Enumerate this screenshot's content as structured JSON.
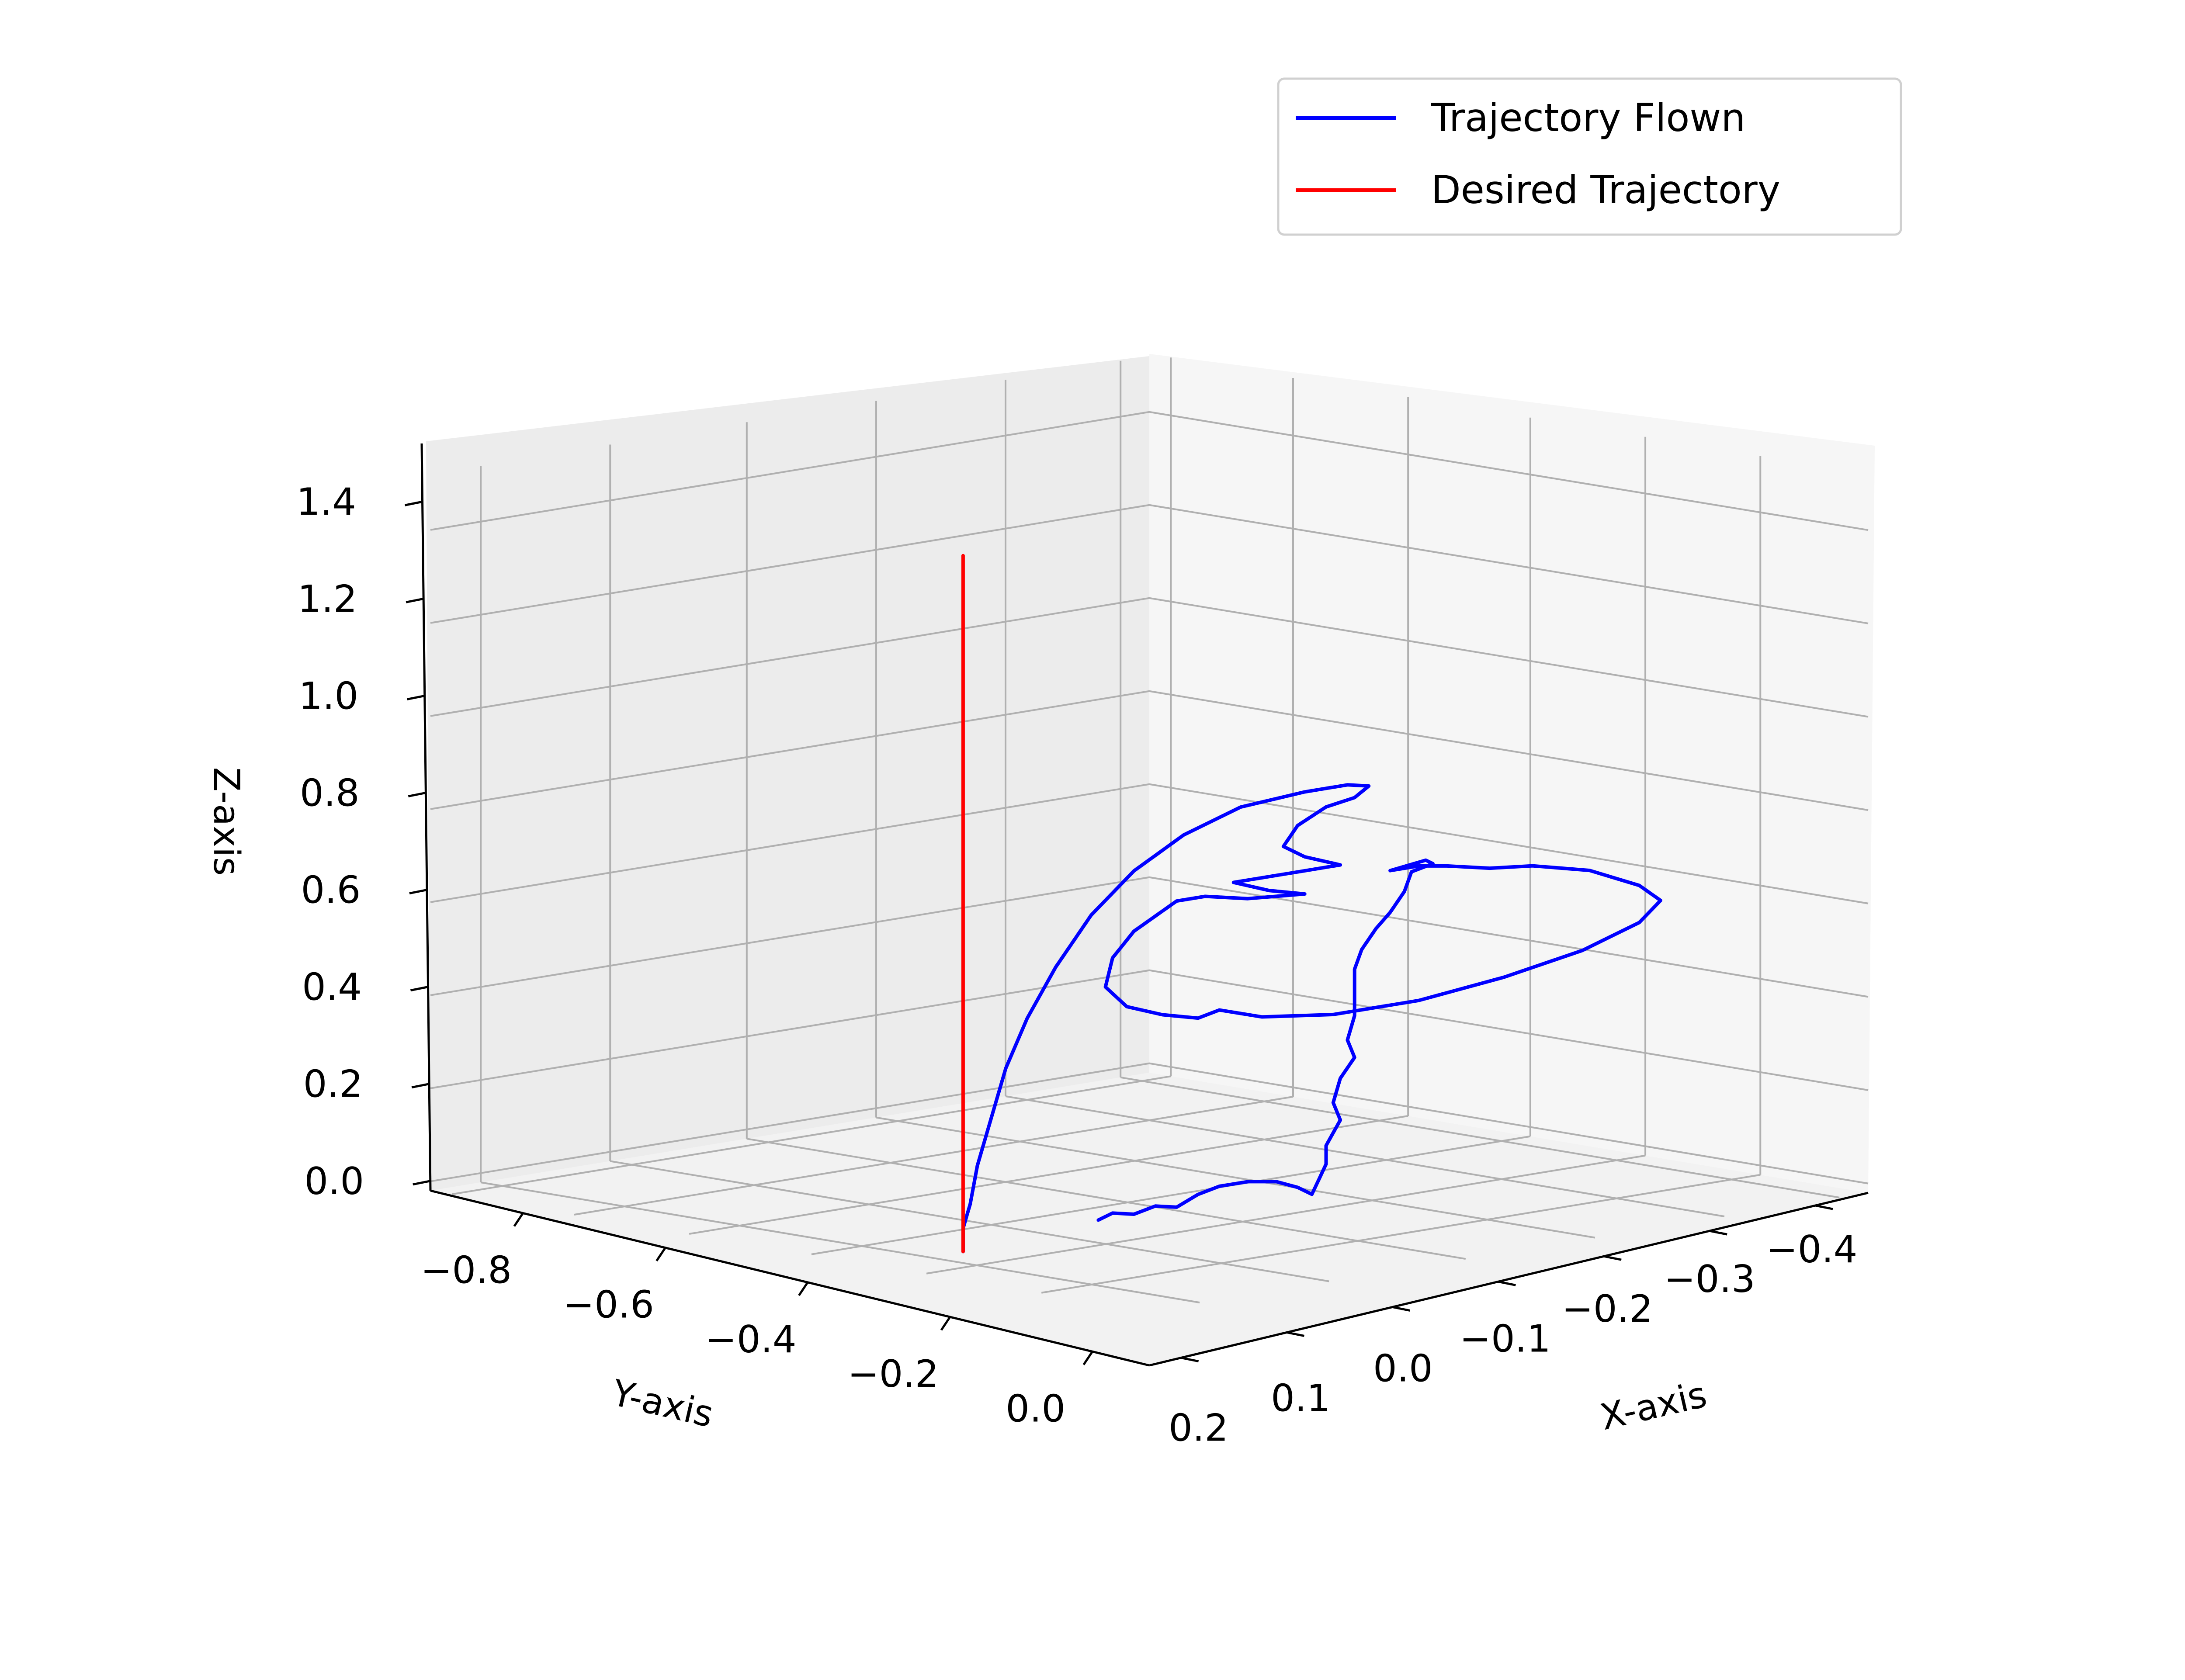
{
  "chart_data": {
    "type": "line3d",
    "title": "",
    "xlabel": "X-axis",
    "ylabel": "Y-axis",
    "zlabel": "Z-axis",
    "x_ticks": [
      "0.2",
      "0.1",
      "0.0",
      "−0.1",
      "−0.2",
      "−0.3",
      "−0.4"
    ],
    "y_ticks": [
      "−0.8",
      "−0.6",
      "−0.4",
      "−0.2",
      "0.0"
    ],
    "z_ticks": [
      "0.0",
      "0.2",
      "0.4",
      "0.6",
      "0.8",
      "1.0",
      "1.2",
      "1.4"
    ],
    "grid": true,
    "legend_position": "top-right",
    "series": [
      {
        "name": "Trajectory Flown",
        "color": "#0000ff",
        "points": [
          [
            0.0,
            0.0,
            0.0
          ],
          [
            0.0,
            0.0,
            0.05
          ],
          [
            0.0,
            -0.01,
            0.1
          ],
          [
            0.0,
            -0.02,
            0.18
          ],
          [
            0.0,
            -0.04,
            0.28
          ],
          [
            0.0,
            -0.06,
            0.38
          ],
          [
            0.0,
            -0.09,
            0.48
          ],
          [
            0.0,
            -0.13,
            0.58
          ],
          [
            0.0,
            -0.18,
            0.68
          ],
          [
            0.0,
            -0.24,
            0.76
          ],
          [
            0.0,
            -0.31,
            0.82
          ],
          [
            0.0,
            -0.39,
            0.86
          ],
          [
            0.0,
            -0.48,
            0.87
          ],
          [
            0.0,
            -0.54,
            0.87
          ],
          [
            0.0,
            -0.57,
            0.86
          ],
          [
            0.0,
            -0.55,
            0.84
          ],
          [
            0.0,
            -0.51,
            0.83
          ],
          [
            0.0,
            -0.47,
            0.8
          ],
          [
            0.0,
            -0.45,
            0.76
          ],
          [
            0.0,
            -0.48,
            0.73
          ],
          [
            0.0,
            -0.53,
            0.7
          ],
          [
            0.0,
            -0.48,
            0.7
          ],
          [
            0.0,
            -0.42,
            0.7
          ],
          [
            0.0,
            -0.38,
            0.7
          ],
          [
            0.0,
            -0.43,
            0.67
          ],
          [
            0.0,
            -0.48,
            0.65
          ],
          [
            0.0,
            -0.4,
            0.66
          ],
          [
            0.0,
            -0.34,
            0.68
          ],
          [
            0.0,
            -0.3,
            0.68
          ],
          [
            0.0,
            -0.24,
            0.63
          ],
          [
            0.0,
            -0.21,
            0.58
          ],
          [
            0.0,
            -0.2,
            0.52
          ],
          [
            0.0,
            -0.23,
            0.47
          ],
          [
            0.0,
            -0.28,
            0.44
          ],
          [
            0.0,
            -0.33,
            0.42
          ],
          [
            0.0,
            -0.36,
            0.43
          ],
          [
            0.0,
            -0.42,
            0.4
          ],
          [
            0.0,
            -0.52,
            0.38
          ],
          [
            0.0,
            -0.64,
            0.38
          ],
          [
            0.0,
            -0.76,
            0.4
          ],
          [
            0.0,
            -0.87,
            0.43
          ],
          [
            0.0,
            -0.95,
            0.47
          ],
          [
            0.0,
            -0.98,
            0.51
          ],
          [
            0.0,
            -0.95,
            0.55
          ],
          [
            0.0,
            -0.88,
            0.6
          ],
          [
            0.0,
            -0.8,
            0.63
          ],
          [
            0.0,
            -0.74,
            0.64
          ],
          [
            0.0,
            -0.68,
            0.66
          ],
          [
            0.0,
            -0.64,
            0.67
          ],
          [
            0.0,
            -0.6,
            0.67
          ],
          [
            0.0,
            -0.65,
            0.68
          ],
          [
            0.0,
            -0.66,
            0.67
          ],
          [
            0.0,
            -0.63,
            0.66
          ],
          [
            0.0,
            -0.62,
            0.62
          ],
          [
            0.0,
            -0.6,
            0.58
          ],
          [
            0.0,
            -0.58,
            0.55
          ],
          [
            0.0,
            -0.56,
            0.51
          ],
          [
            0.0,
            -0.55,
            0.47
          ],
          [
            0.0,
            -0.55,
            0.42
          ],
          [
            0.0,
            -0.55,
            0.37
          ],
          [
            0.0,
            -0.54,
            0.32
          ],
          [
            0.0,
            -0.55,
            0.28
          ],
          [
            0.0,
            -0.53,
            0.24
          ],
          [
            0.0,
            -0.52,
            0.19
          ],
          [
            0.0,
            -0.53,
            0.15
          ],
          [
            0.0,
            -0.51,
            0.1
          ],
          [
            0.0,
            -0.51,
            0.06
          ],
          [
            0.0,
            -0.5,
            0.03
          ],
          [
            0.0,
            -0.49,
            0.0
          ],
          [
            0.0,
            -0.47,
            0.02
          ],
          [
            0.0,
            -0.44,
            0.04
          ],
          [
            0.0,
            -0.4,
            0.05
          ],
          [
            0.0,
            -0.36,
            0.05
          ],
          [
            0.0,
            -0.33,
            0.04
          ],
          [
            0.0,
            -0.3,
            0.02
          ],
          [
            0.0,
            -0.27,
            0.03
          ],
          [
            0.0,
            -0.24,
            0.02
          ],
          [
            0.0,
            -0.21,
            0.03
          ],
          [
            0.0,
            -0.19,
            0.02
          ]
        ]
      },
      {
        "name": "Desired Trajectory",
        "color": "#ff0000",
        "points": [
          [
            0.0,
            0.0,
            0.0
          ],
          [
            0.0,
            0.0,
            1.5
          ]
        ]
      }
    ]
  }
}
